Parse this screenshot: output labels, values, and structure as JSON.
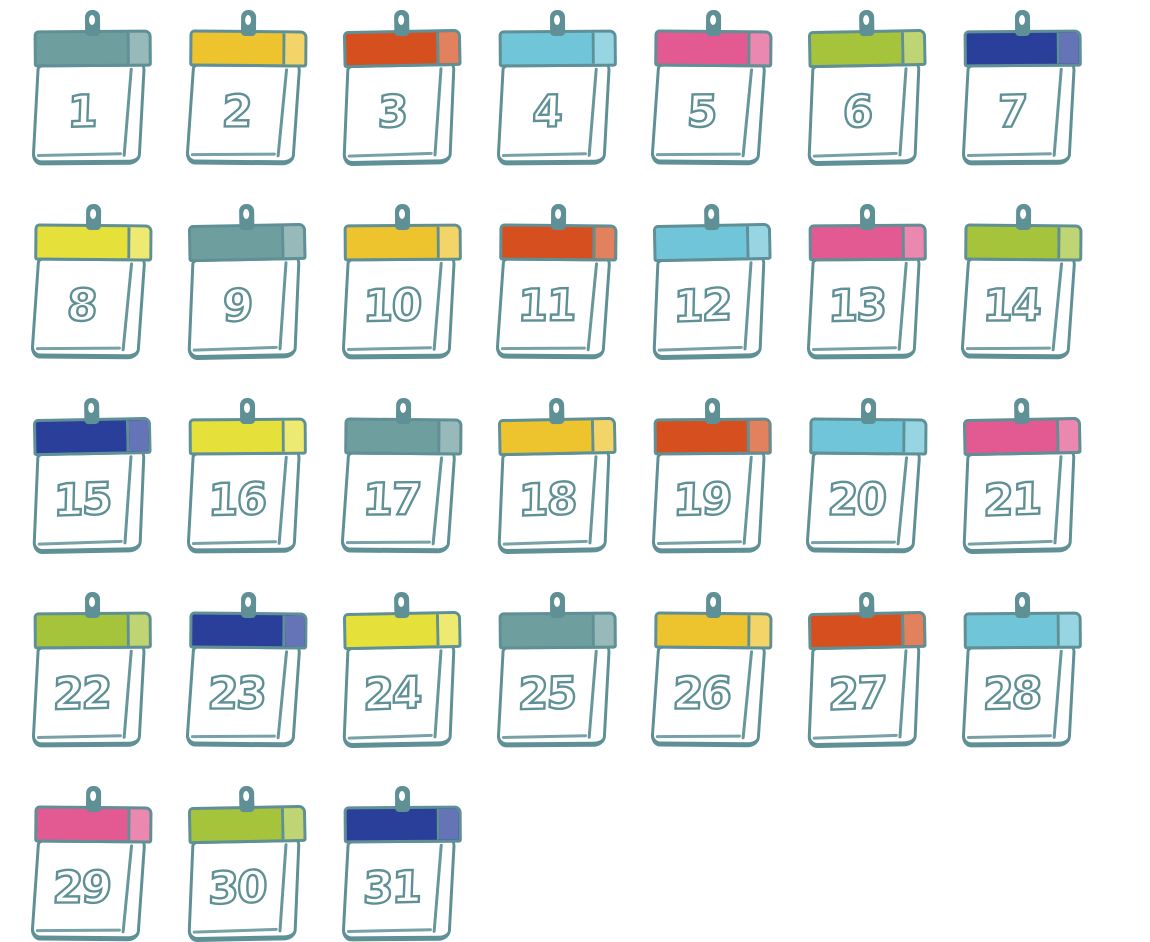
{
  "figure": {
    "description": "Hand-drawn daily flip calendar icons for days 1 to 31, arranged in a 7-column grid",
    "outline_color": "#5f9096",
    "page_color": "#ffffff",
    "background_color": "#ffffff"
  },
  "grid": {
    "columns": 7,
    "rows": 5,
    "last_row_count": 3
  },
  "palette": {
    "teal": "#6f9e9e",
    "gold": "#edc32e",
    "orange": "#d6501f",
    "cyan": "#70c5d8",
    "pink": "#e35a92",
    "green": "#a6c33c",
    "navy": "#2a3f9a",
    "yellow": "#e6e13a"
  },
  "days": [
    {
      "label": "1",
      "color": "#6f9e9e",
      "color_name": "teal"
    },
    {
      "label": "2",
      "color": "#edc32e",
      "color_name": "gold"
    },
    {
      "label": "3",
      "color": "#d6501f",
      "color_name": "orange"
    },
    {
      "label": "4",
      "color": "#70c5d8",
      "color_name": "cyan"
    },
    {
      "label": "5",
      "color": "#e35a92",
      "color_name": "pink"
    },
    {
      "label": "6",
      "color": "#a6c33c",
      "color_name": "green"
    },
    {
      "label": "7",
      "color": "#2a3f9a",
      "color_name": "navy"
    },
    {
      "label": "8",
      "color": "#e6e13a",
      "color_name": "yellow"
    },
    {
      "label": "9",
      "color": "#6f9e9e",
      "color_name": "teal"
    },
    {
      "label": "10",
      "color": "#edc32e",
      "color_name": "gold"
    },
    {
      "label": "11",
      "color": "#d6501f",
      "color_name": "orange"
    },
    {
      "label": "12",
      "color": "#70c5d8",
      "color_name": "cyan"
    },
    {
      "label": "13",
      "color": "#e35a92",
      "color_name": "pink"
    },
    {
      "label": "14",
      "color": "#a6c33c",
      "color_name": "green"
    },
    {
      "label": "15",
      "color": "#2a3f9a",
      "color_name": "navy"
    },
    {
      "label": "16",
      "color": "#e6e13a",
      "color_name": "yellow"
    },
    {
      "label": "17",
      "color": "#6f9e9e",
      "color_name": "teal"
    },
    {
      "label": "18",
      "color": "#edc32e",
      "color_name": "gold"
    },
    {
      "label": "19",
      "color": "#d6501f",
      "color_name": "orange"
    },
    {
      "label": "20",
      "color": "#70c5d8",
      "color_name": "cyan"
    },
    {
      "label": "21",
      "color": "#e35a92",
      "color_name": "pink"
    },
    {
      "label": "22",
      "color": "#a6c33c",
      "color_name": "green"
    },
    {
      "label": "23",
      "color": "#2a3f9a",
      "color_name": "navy"
    },
    {
      "label": "24",
      "color": "#e6e13a",
      "color_name": "yellow"
    },
    {
      "label": "25",
      "color": "#6f9e9e",
      "color_name": "teal"
    },
    {
      "label": "26",
      "color": "#edc32e",
      "color_name": "gold"
    },
    {
      "label": "27",
      "color": "#d6501f",
      "color_name": "orange"
    },
    {
      "label": "28",
      "color": "#70c5d8",
      "color_name": "cyan"
    },
    {
      "label": "29",
      "color": "#e35a92",
      "color_name": "pink"
    },
    {
      "label": "30",
      "color": "#a6c33c",
      "color_name": "green"
    },
    {
      "label": "31",
      "color": "#2a3f9a",
      "color_name": "navy"
    }
  ]
}
